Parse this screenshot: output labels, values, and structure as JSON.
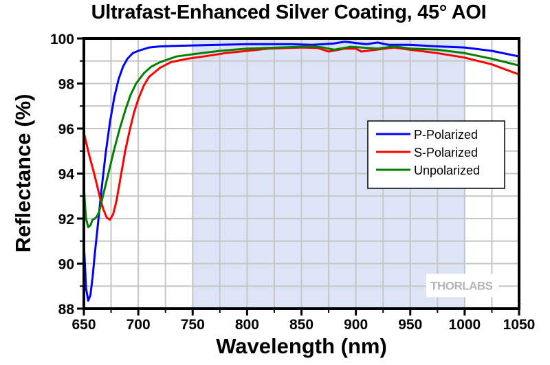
{
  "chart_data": {
    "type": "line",
    "title": "Ultrafast-Enhanced Silver Coating, 45° AOI",
    "xlabel": "Wavelength (nm)",
    "ylabel": "Reflectance (%)",
    "xlim": [
      650,
      1050
    ],
    "ylim": [
      88,
      100
    ],
    "xticks": [
      650,
      700,
      750,
      800,
      850,
      900,
      950,
      1000,
      1050
    ],
    "yticks": [
      88,
      90,
      92,
      94,
      96,
      98,
      100
    ],
    "grid": true,
    "legend_position": "center-right",
    "highlight_band": {
      "x_start": 750,
      "x_end": 1000,
      "color": "#dce4f5"
    },
    "watermark": "THORLABS",
    "series": [
      {
        "name": "P-Polarized",
        "color": "#0000ff",
        "x": [
          650,
          652,
          654,
          656,
          658,
          660,
          663,
          666,
          670,
          674,
          678,
          682,
          686,
          690,
          695,
          700,
          710,
          720,
          740,
          760,
          800,
          840,
          860,
          880,
          890,
          900,
          910,
          920,
          930,
          950,
          975,
          1000,
          1025,
          1050
        ],
        "y": [
          90.9,
          88.9,
          88.35,
          88.6,
          89.4,
          90.4,
          91.8,
          93.2,
          94.9,
          96.3,
          97.4,
          98.2,
          98.75,
          99.1,
          99.35,
          99.45,
          99.6,
          99.65,
          99.68,
          99.7,
          99.75,
          99.75,
          99.72,
          99.78,
          99.86,
          99.8,
          99.75,
          99.82,
          99.72,
          99.72,
          99.65,
          99.6,
          99.45,
          99.2
        ]
      },
      {
        "name": "S-Polarized",
        "color": "#ff0000",
        "x": [
          650,
          655,
          660,
          665,
          668,
          671,
          674,
          677,
          680,
          684,
          688,
          692,
          696,
          700,
          705,
          710,
          720,
          730,
          745,
          760,
          780,
          800,
          820,
          850,
          865,
          875,
          890,
          900,
          905,
          915,
          935,
          950,
          975,
          1000,
          1025,
          1050
        ],
        "y": [
          95.8,
          94.8,
          93.9,
          92.9,
          92.4,
          92.05,
          91.95,
          92.2,
          92.8,
          93.9,
          95.0,
          95.9,
          96.7,
          97.3,
          97.9,
          98.3,
          98.7,
          98.95,
          99.1,
          99.2,
          99.35,
          99.45,
          99.55,
          99.6,
          99.58,
          99.42,
          99.55,
          99.55,
          99.42,
          99.48,
          99.6,
          99.5,
          99.35,
          99.15,
          98.85,
          98.4
        ]
      },
      {
        "name": "Unpolarized",
        "color": "#008000",
        "x": [
          650,
          651,
          652,
          654,
          656,
          658,
          660,
          662,
          664,
          666,
          669,
          673,
          678,
          683,
          688,
          693,
          698,
          705,
          712,
          720,
          735,
          750,
          775,
          800,
          830,
          860,
          870,
          880,
          895,
          905,
          920,
          935,
          950,
          975,
          1000,
          1025,
          1050
        ],
        "y": [
          93.5,
          92.6,
          92.0,
          91.62,
          91.7,
          91.95,
          92.0,
          92.1,
          92.3,
          92.7,
          93.3,
          94.1,
          95.1,
          96.0,
          96.8,
          97.5,
          98.0,
          98.45,
          98.75,
          98.95,
          99.2,
          99.3,
          99.45,
          99.55,
          99.6,
          99.65,
          99.6,
          99.5,
          99.63,
          99.6,
          99.55,
          99.65,
          99.55,
          99.5,
          99.35,
          99.1,
          98.8
        ]
      }
    ]
  }
}
